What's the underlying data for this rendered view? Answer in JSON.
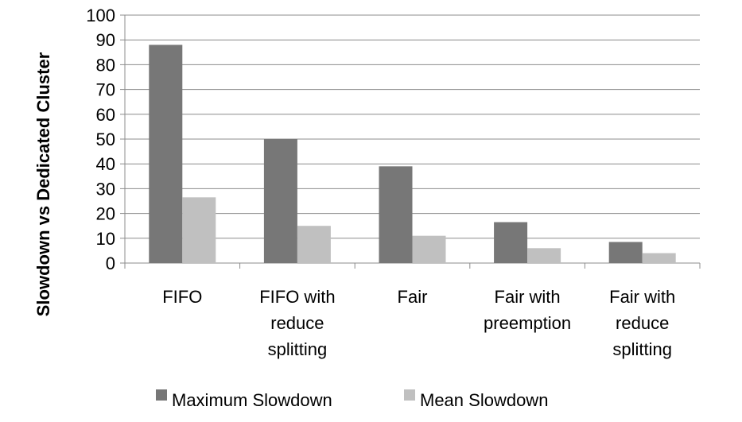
{
  "chart_data": {
    "type": "bar",
    "title": "",
    "xlabel": "",
    "ylabel": "Slowdown vs Dedicated Cluster",
    "ylim": [
      0,
      100
    ],
    "yticks": [
      0,
      10,
      20,
      30,
      40,
      50,
      60,
      70,
      80,
      90,
      100
    ],
    "grid": true,
    "legend_position": "bottom",
    "categories": [
      [
        "FIFO"
      ],
      [
        "FIFO with",
        "reduce",
        "splitting"
      ],
      [
        "Fair"
      ],
      [
        "Fair with",
        "preemption"
      ],
      [
        "Fair with",
        "reduce",
        "splitting"
      ]
    ],
    "series": [
      {
        "name": "Maximum Slowdown",
        "color": "#777777",
        "values": [
          88,
          50,
          39,
          16.5,
          8.5
        ]
      },
      {
        "name": "Mean Slowdown",
        "color": "#c0c0c0",
        "values": [
          26.5,
          15,
          11,
          6,
          4
        ]
      }
    ]
  }
}
